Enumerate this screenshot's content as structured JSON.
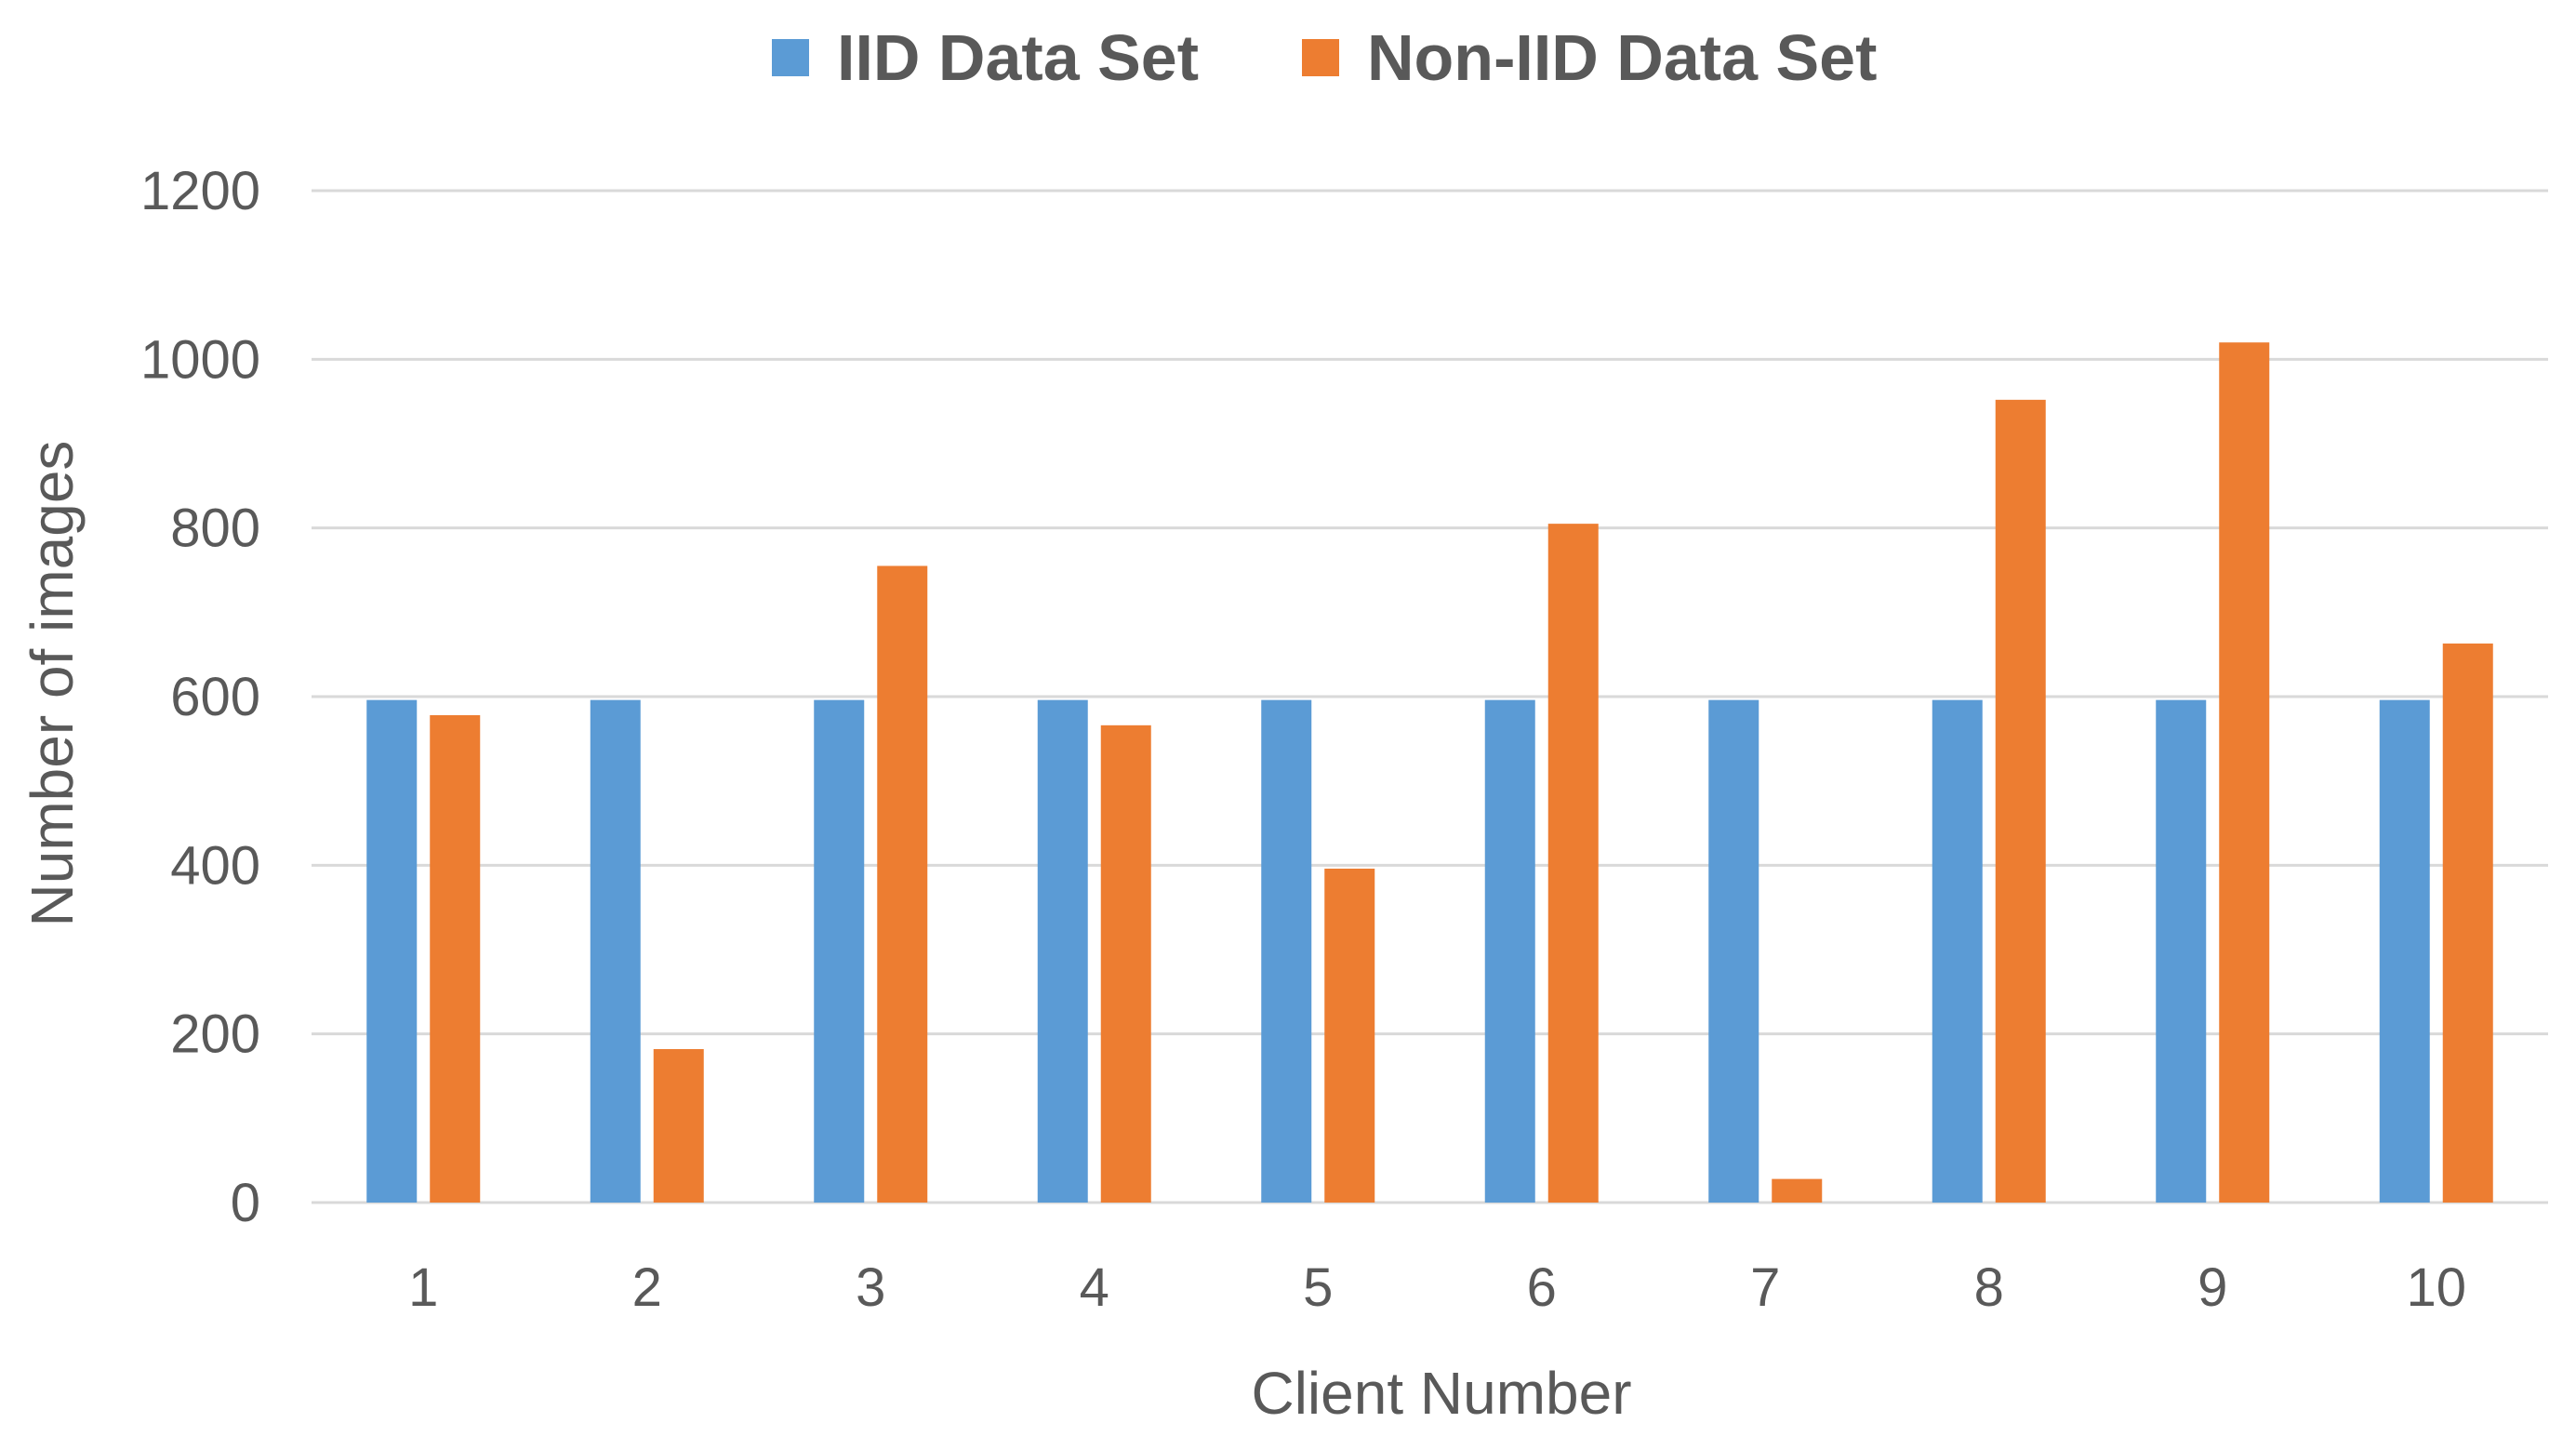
{
  "chart_data": {
    "type": "bar",
    "title": "",
    "xlabel": "Client Number",
    "ylabel": "Number of images",
    "categories": [
      "1",
      "2",
      "3",
      "4",
      "5",
      "6",
      "7",
      "8",
      "9",
      "10"
    ],
    "series": [
      {
        "name": "IID Data Set",
        "color": "#5b9bd5",
        "values": [
          596,
          596,
          596,
          596,
          596,
          596,
          596,
          596,
          596,
          596
        ]
      },
      {
        "name": "Non-IID Data Set",
        "color": "#ed7d31",
        "values": [
          578,
          182,
          755,
          566,
          396,
          805,
          28,
          952,
          1020,
          663
        ]
      }
    ],
    "ylim": [
      0,
      1200
    ],
    "yticks": [
      "0",
      "200",
      "400",
      "600",
      "800",
      "1000",
      "1200"
    ],
    "ytick_values": [
      0,
      200,
      400,
      600,
      800,
      1000,
      1200
    ],
    "grid": true,
    "legend_position": "top-center"
  }
}
